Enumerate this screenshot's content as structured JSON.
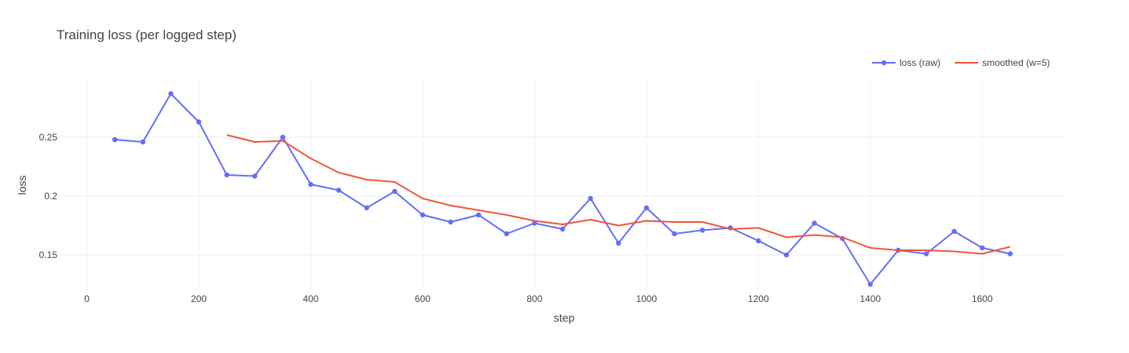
{
  "chart_data": {
    "type": "line",
    "title": "Training loss (per logged step)",
    "xlabel": "step",
    "ylabel": "loss",
    "xlim": [
      -50,
      1750
    ],
    "ylim": [
      0.12,
      0.3
    ],
    "xticks": [
      0,
      200,
      400,
      600,
      800,
      1000,
      1200,
      1400,
      1600
    ],
    "xtick_labels": [
      "0",
      "200",
      "400",
      "600",
      "800",
      "1000",
      "1200",
      "1400",
      "1600"
    ],
    "yticks": [
      0.15,
      0.2,
      0.25
    ],
    "ytick_labels": [
      "0.15",
      "0.2",
      "0.25"
    ],
    "grid": true,
    "legend_position": "top-right",
    "series": [
      {
        "name": "loss (raw)",
        "color": "#636efa",
        "mode": "lines+markers",
        "x": [
          50,
          100,
          150,
          200,
          250,
          300,
          350,
          400,
          450,
          500,
          550,
          600,
          650,
          700,
          750,
          800,
          850,
          900,
          950,
          1000,
          1050,
          1100,
          1150,
          1200,
          1250,
          1300,
          1350,
          1400,
          1450,
          1500,
          1550,
          1600,
          1650
        ],
        "y": [
          0.248,
          0.246,
          0.287,
          0.263,
          0.218,
          0.217,
          0.25,
          0.21,
          0.205,
          0.19,
          0.204,
          0.184,
          0.178,
          0.184,
          0.168,
          0.177,
          0.172,
          0.198,
          0.16,
          0.19,
          0.168,
          0.171,
          0.173,
          0.162,
          0.15,
          0.177,
          0.164,
          0.125,
          0.154,
          0.151,
          0.17,
          0.156,
          0.151
        ]
      },
      {
        "name": "smoothed (w=5)",
        "color": "#ef553b",
        "mode": "lines",
        "x": [
          250,
          300,
          350,
          400,
          450,
          500,
          550,
          600,
          650,
          700,
          750,
          800,
          850,
          900,
          950,
          1000,
          1050,
          1100,
          1150,
          1200,
          1250,
          1300,
          1350,
          1400,
          1450,
          1500,
          1550,
          1600,
          1650
        ],
        "y": [
          0.252,
          0.246,
          0.247,
          0.232,
          0.22,
          0.214,
          0.212,
          0.198,
          0.192,
          0.188,
          0.184,
          0.179,
          0.176,
          0.18,
          0.175,
          0.179,
          0.178,
          0.178,
          0.172,
          0.173,
          0.165,
          0.167,
          0.165,
          0.156,
          0.154,
          0.154,
          0.153,
          0.151,
          0.157
        ]
      }
    ]
  }
}
